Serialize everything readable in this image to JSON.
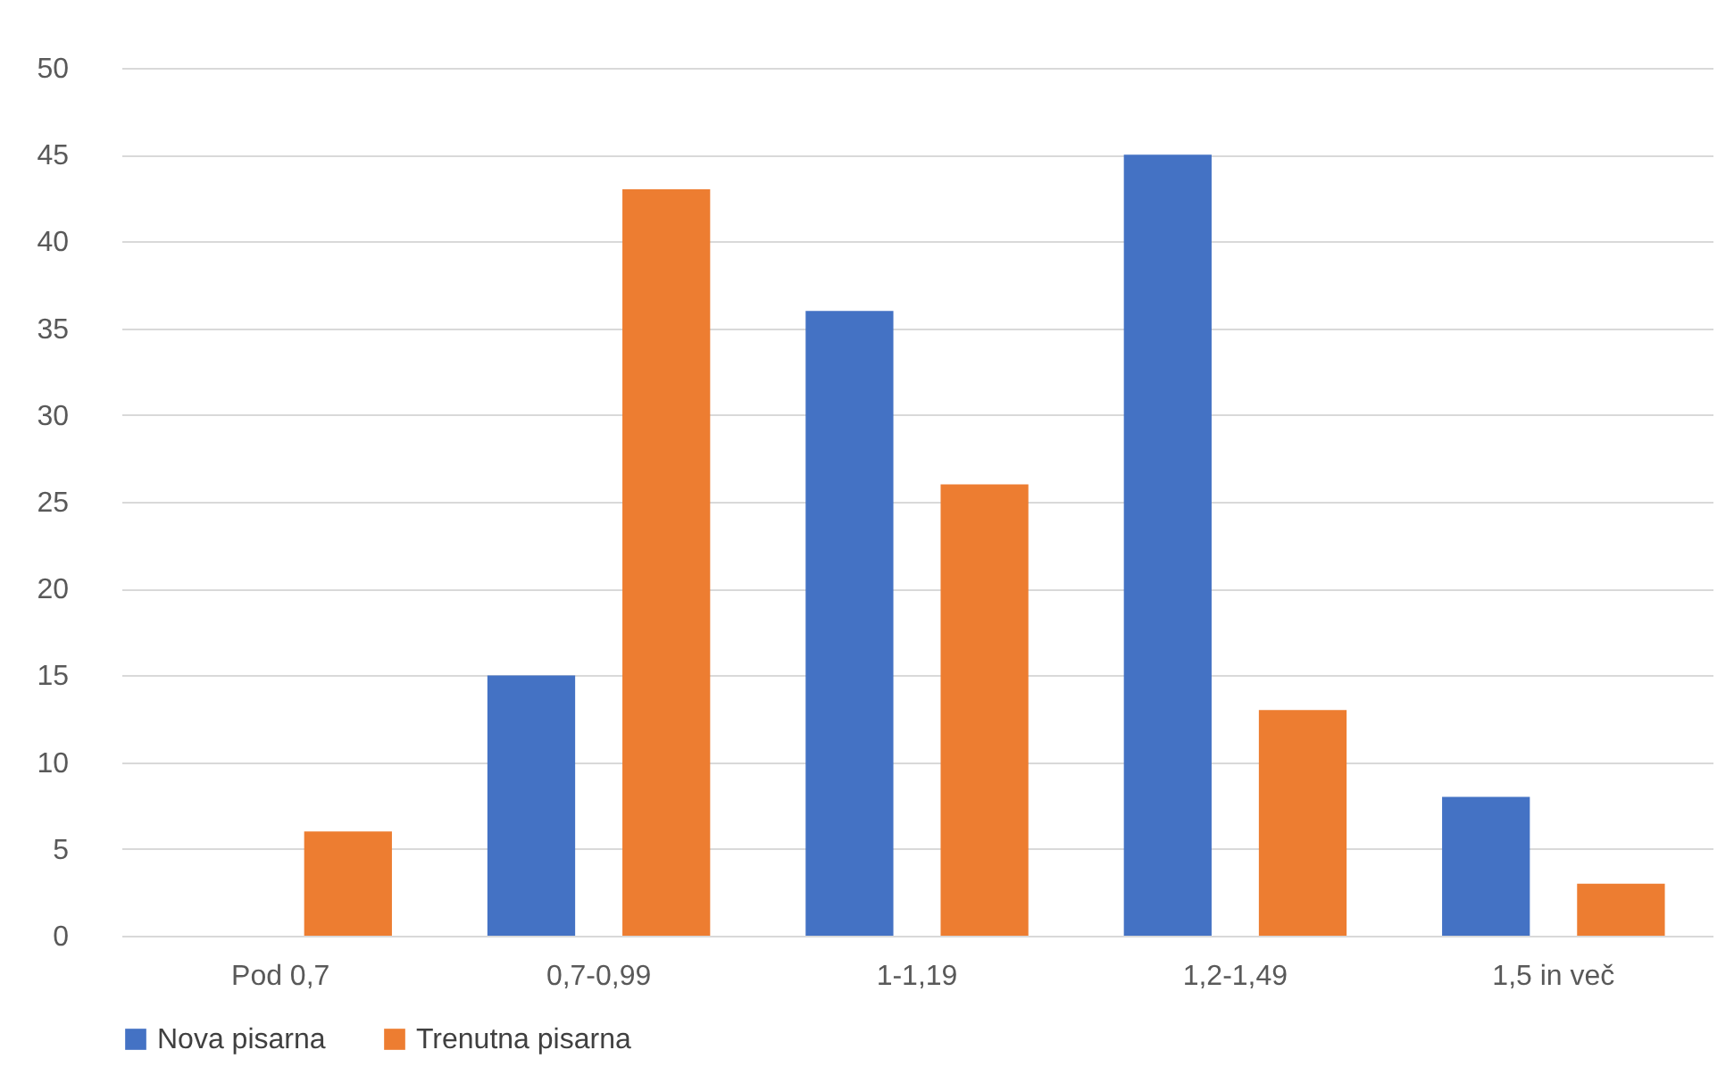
{
  "chart_data": {
    "type": "bar",
    "categories": [
      "Pod 0,7",
      "0,7-0,99",
      "1-1,19",
      "1,2-1,49",
      "1,5 in več"
    ],
    "series": [
      {
        "name": "Nova pisarna",
        "color": "#4472c4",
        "values": [
          0,
          15,
          36,
          45,
          8
        ]
      },
      {
        "name": "Trenutna pisarna",
        "color": "#ed7d31",
        "values": [
          6,
          43,
          26,
          13,
          3
        ]
      }
    ],
    "ylim": [
      0,
      50
    ],
    "yticks": [
      0,
      5,
      10,
      15,
      20,
      25,
      30,
      35,
      40,
      45,
      50
    ],
    "grid": "y",
    "legend": "bottom"
  }
}
